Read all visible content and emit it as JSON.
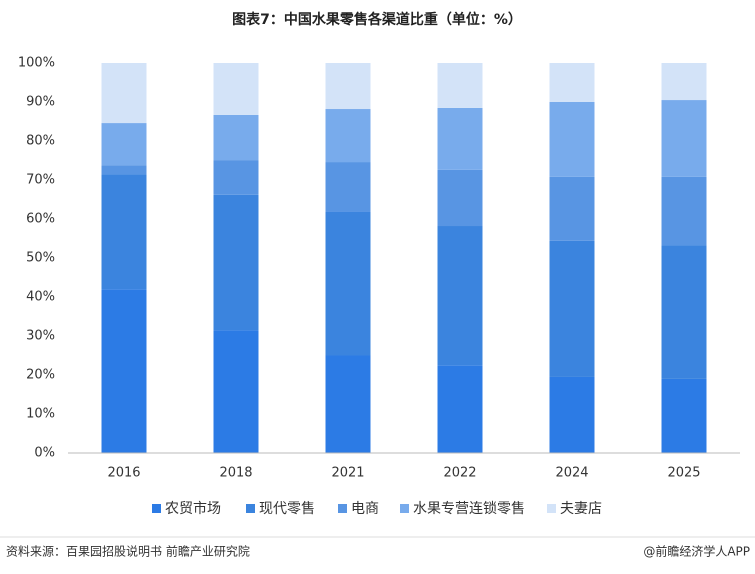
{
  "chart_data": {
    "type": "bar",
    "stacked": true,
    "title": "图表7：中国水果零售各渠道比重（单位：%）",
    "categories": [
      "2016",
      "2018",
      "2021",
      "2022",
      "2024",
      "2025"
    ],
    "series": [
      {
        "name": "农贸市场",
        "color": "#2c7be5",
        "values": [
          42,
          31.5,
          25,
          22.5,
          19.5,
          19
        ]
      },
      {
        "name": "现代零售",
        "color": "#3b84de",
        "values": [
          29.5,
          34.7,
          36.8,
          35.7,
          34.9,
          34.3
        ]
      },
      {
        "name": "电商",
        "color": "#5895e3",
        "values": [
          2.3,
          8.9,
          12.8,
          14.4,
          16.4,
          17.5
        ]
      },
      {
        "name": "水果专营连锁零售",
        "color": "#78abec",
        "values": [
          10.8,
          11.6,
          13.6,
          15.9,
          19.2,
          19.7
        ]
      },
      {
        "name": "夫妻店",
        "color": "#d3e3f8",
        "values": [
          15.4,
          13.3,
          11.8,
          11.5,
          10,
          9.5
        ]
      }
    ],
    "ylim": [
      0,
      100
    ],
    "yticks": [
      {
        "value": 0,
        "label": "0%"
      },
      {
        "value": 10,
        "label": "10%"
      },
      {
        "value": 20,
        "label": "20%"
      },
      {
        "value": 30,
        "label": "30%"
      },
      {
        "value": 40,
        "label": "40%"
      },
      {
        "value": 50,
        "label": "50%"
      },
      {
        "value": 60,
        "label": "60%"
      },
      {
        "value": 70,
        "label": "70%"
      },
      {
        "value": 80,
        "label": "80%"
      },
      {
        "value": 90,
        "label": "90%"
      },
      {
        "value": 100,
        "label": "100%"
      }
    ],
    "legend": "bottom",
    "source": "资料来源：百果园招股说明书 前瞻产业研究院",
    "credit": "@前瞻经济学人APP"
  }
}
